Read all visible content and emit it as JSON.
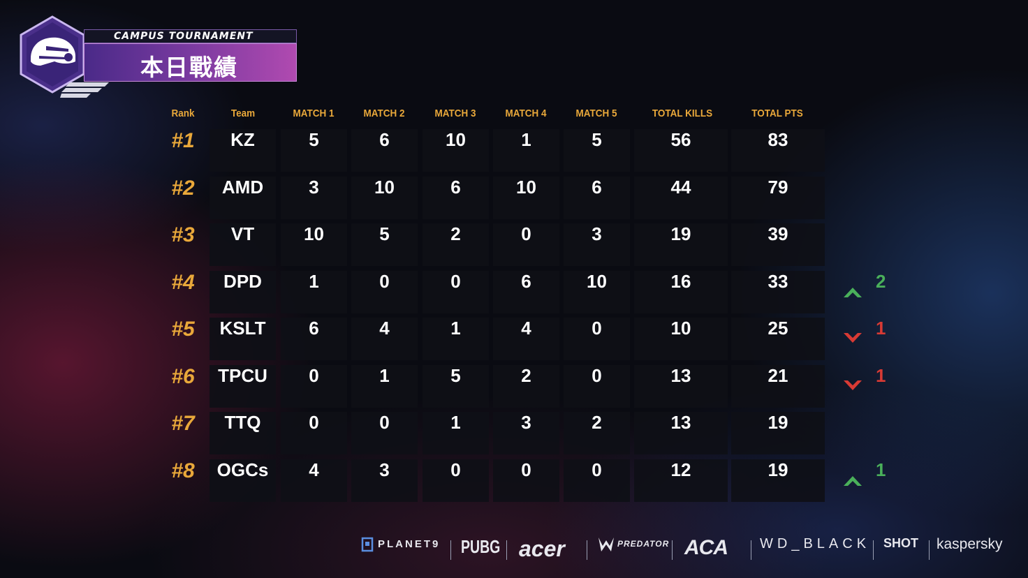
{
  "header": {
    "subtitle": "CAMPUS TOURNAMENT",
    "title": "本日戰績"
  },
  "columns": [
    "Rank",
    "Team",
    "MATCH 1",
    "MATCH 2",
    "MATCH 3",
    "MATCH 4",
    "MATCH 5",
    "TOTAL KILLS",
    "TOTAL PTS"
  ],
  "rows": [
    {
      "rank": "#1",
      "team": "KZ",
      "m1": "5",
      "m2": "6",
      "m3": "10",
      "m4": "1",
      "m5": "5",
      "kills": "56",
      "pts": "83"
    },
    {
      "rank": "#2",
      "team": "AMD",
      "m1": "3",
      "m2": "10",
      "m3": "6",
      "m4": "10",
      "m5": "6",
      "kills": "44",
      "pts": "79"
    },
    {
      "rank": "#3",
      "team": "VT",
      "m1": "10",
      "m2": "5",
      "m3": "2",
      "m4": "0",
      "m5": "3",
      "kills": "19",
      "pts": "39"
    },
    {
      "rank": "#4",
      "team": "DPD",
      "m1": "1",
      "m2": "0",
      "m3": "0",
      "m4": "6",
      "m5": "10",
      "kills": "16",
      "pts": "33",
      "change": {
        "dir": "up",
        "value": "2"
      }
    },
    {
      "rank": "#5",
      "team": "KSLT",
      "m1": "6",
      "m2": "4",
      "m3": "1",
      "m4": "4",
      "m5": "0",
      "kills": "10",
      "pts": "25",
      "change": {
        "dir": "down",
        "value": "1"
      }
    },
    {
      "rank": "#6",
      "team": "TPCU",
      "m1": "0",
      "m2": "1",
      "m3": "5",
      "m4": "2",
      "m5": "0",
      "kills": "13",
      "pts": "21",
      "change": {
        "dir": "down",
        "value": "1"
      }
    },
    {
      "rank": "#7",
      "team": "TTQ",
      "m1": "0",
      "m2": "0",
      "m3": "1",
      "m4": "3",
      "m5": "2",
      "kills": "13",
      "pts": "19"
    },
    {
      "rank": "#8",
      "team": "OGCs",
      "m1": "4",
      "m2": "3",
      "m3": "0",
      "m4": "0",
      "m5": "0",
      "kills": "12",
      "pts": "19",
      "change": {
        "dir": "up",
        "value": "1"
      }
    }
  ],
  "sponsors": [
    "PLANET9",
    "PUBG",
    "acer",
    "PREDATOR",
    "ACA",
    "WD_BLACK",
    "SHOT",
    "kaspersky"
  ],
  "colors": {
    "accent": "#e9a83a",
    "up": "#4ab05a",
    "down": "#d83a34",
    "cell": "#0e0f16"
  },
  "icons": {
    "logo": "helmet-icon",
    "up": "chevron-up-icon",
    "down": "chevron-down-icon"
  }
}
